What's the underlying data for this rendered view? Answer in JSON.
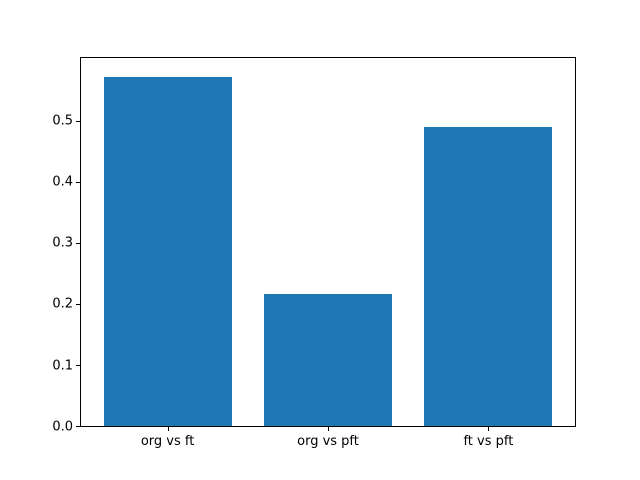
{
  "chart_data": {
    "type": "bar",
    "categories": [
      "org vs ft",
      "org vs pft",
      "ft vs pft"
    ],
    "values": [
      0.572,
      0.217,
      0.49
    ],
    "title": "",
    "xlabel": "",
    "ylabel": "",
    "ylim": [
      0,
      0.603
    ],
    "xlim": [
      -0.54,
      2.54
    ],
    "bar_width": 0.8,
    "yticks": [
      0.0,
      0.1,
      0.2,
      0.3,
      0.4,
      0.5
    ],
    "ytick_labels": [
      "0.0",
      "0.1",
      "0.2",
      "0.3",
      "0.4",
      "0.5"
    ],
    "grid": false,
    "legend": "none",
    "bar_color": "#1f77b4"
  },
  "colors": {
    "background": "#ffffff",
    "axis": "#000000",
    "bar": "#1f77b4",
    "text": "#000000"
  }
}
